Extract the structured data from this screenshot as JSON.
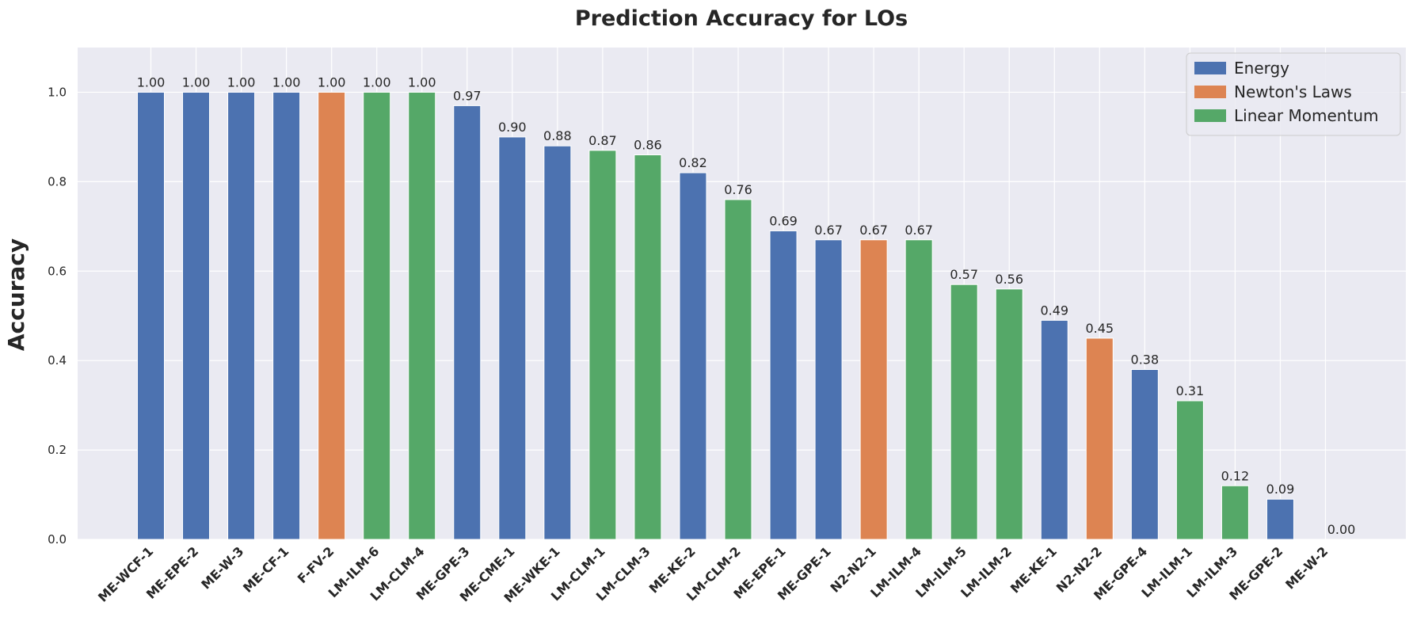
{
  "chart_data": {
    "type": "bar",
    "title": "Prediction Accuracy for LOs",
    "xlabel": "",
    "ylabel": "Accuracy",
    "ylim": [
      0,
      1.1
    ],
    "yticks": [
      "0.0",
      "0.2",
      "0.4",
      "0.6",
      "0.8",
      "1.0"
    ],
    "grid": true,
    "legend_position": "top-right",
    "legend": [
      {
        "name": "Energy",
        "color": "#4c72b0"
      },
      {
        "name": "Newton's Laws",
        "color": "#dd8452"
      },
      {
        "name": "Linear Momentum",
        "color": "#55a868"
      }
    ],
    "categories": [
      "ME-WCF-1",
      "ME-EPE-2",
      "ME-W-3",
      "ME-CF-1",
      "F-FV-2",
      "LM-ILM-6",
      "LM-CLM-4",
      "ME-GPE-3",
      "ME-CME-1",
      "ME-WKE-1",
      "LM-CLM-1",
      "LM-CLM-3",
      "ME-KE-2",
      "LM-CLM-2",
      "ME-EPE-1",
      "ME-GPE-1",
      "N2-N2-1",
      "LM-ILM-4",
      "LM-ILM-5",
      "LM-ILM-2",
      "ME-KE-1",
      "N2-N2-2",
      "ME-GPE-4",
      "LM-ILM-1",
      "LM-ILM-3",
      "ME-GPE-2",
      "ME-W-2"
    ],
    "values": [
      1.0,
      1.0,
      1.0,
      1.0,
      1.0,
      1.0,
      1.0,
      0.97,
      0.9,
      0.88,
      0.87,
      0.86,
      0.82,
      0.76,
      0.69,
      0.67,
      0.67,
      0.67,
      0.57,
      0.56,
      0.49,
      0.45,
      0.38,
      0.31,
      0.12,
      0.09,
      0.0
    ],
    "value_labels": [
      "1.00",
      "1.00",
      "1.00",
      "1.00",
      "1.00",
      "1.00",
      "1.00",
      "0.97",
      "0.90",
      "0.88",
      "0.87",
      "0.86",
      "0.82",
      "0.76",
      "0.69",
      "0.67",
      "0.67",
      "0.67",
      "0.57",
      "0.56",
      "0.49",
      "0.45",
      "0.38",
      "0.31",
      "0.12",
      "0.09",
      "0.00"
    ],
    "groups": [
      "Energy",
      "Energy",
      "Energy",
      "Energy",
      "Newton's Laws",
      "Linear Momentum",
      "Linear Momentum",
      "Energy",
      "Energy",
      "Energy",
      "Linear Momentum",
      "Linear Momentum",
      "Energy",
      "Linear Momentum",
      "Energy",
      "Energy",
      "Newton's Laws",
      "Linear Momentum",
      "Linear Momentum",
      "Linear Momentum",
      "Energy",
      "Newton's Laws",
      "Energy",
      "Linear Momentum",
      "Linear Momentum",
      "Energy",
      "Energy"
    ],
    "colors": {
      "background": "#eaeaf2",
      "grid": "#ffffff"
    }
  }
}
